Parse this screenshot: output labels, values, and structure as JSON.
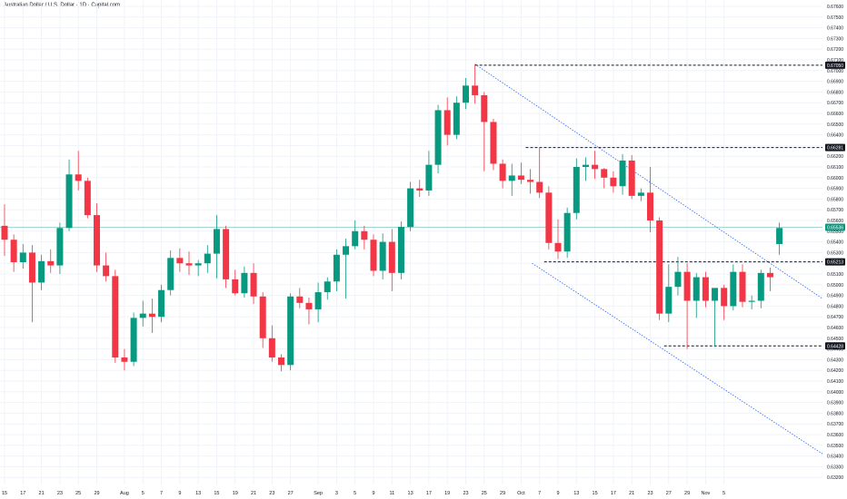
{
  "header": {
    "title": "Australian Dollar / U.S. Dollar · 1D · Capital.com"
  },
  "colors": {
    "up": "#089981",
    "down": "#f23645",
    "grid": "#f0f3fa",
    "axis_text": "#131722",
    "channel": "#2962ff",
    "level_line": "#131722",
    "current_price": "#089981"
  },
  "chart_data": {
    "type": "candlestick",
    "title": "Australian Dollar / U.S. Dollar · 1D · Capital.com",
    "ylim": [
      0.632,
      0.676
    ],
    "grid": true,
    "y_ticks": [
      "0.67600",
      "0.67500",
      "0.67400",
      "0.67300",
      "0.67200",
      "0.67100",
      "0.67000",
      "0.66900",
      "0.66800",
      "0.66700",
      "0.66600",
      "0.66500",
      "0.66400",
      "0.66300",
      "0.66200",
      "0.66100",
      "0.66000",
      "0.65900",
      "0.65800",
      "0.65700",
      "0.65600",
      "0.65500",
      "0.65400",
      "0.65300",
      "0.65200",
      "0.65100",
      "0.65000",
      "0.64900",
      "0.64800",
      "0.64700",
      "0.64600",
      "0.64500",
      "0.64400",
      "0.64300",
      "0.64200",
      "0.64100",
      "0.64000",
      "0.63900",
      "0.63800",
      "0.63700",
      "0.63600",
      "0.63500",
      "0.63400",
      "0.63300",
      "0.63200"
    ],
    "x_ticks": [
      {
        "label": "15",
        "i": 0
      },
      {
        "label": "17",
        "i": 2
      },
      {
        "label": "21",
        "i": 4
      },
      {
        "label": "23",
        "i": 6
      },
      {
        "label": "25",
        "i": 8
      },
      {
        "label": "29",
        "i": 10
      },
      {
        "label": "Aug",
        "i": 13
      },
      {
        "label": "5",
        "i": 15
      },
      {
        "label": "7",
        "i": 17
      },
      {
        "label": "9",
        "i": 19
      },
      {
        "label": "13",
        "i": 21
      },
      {
        "label": "15",
        "i": 23
      },
      {
        "label": "19",
        "i": 25
      },
      {
        "label": "21",
        "i": 27
      },
      {
        "label": "23",
        "i": 29
      },
      {
        "label": "27",
        "i": 31
      },
      {
        "label": "Sep",
        "i": 34
      },
      {
        "label": "3",
        "i": 36
      },
      {
        "label": "5",
        "i": 38
      },
      {
        "label": "9",
        "i": 40
      },
      {
        "label": "11",
        "i": 42
      },
      {
        "label": "13",
        "i": 44
      },
      {
        "label": "17",
        "i": 46
      },
      {
        "label": "19",
        "i": 48
      },
      {
        "label": "23",
        "i": 50
      },
      {
        "label": "25",
        "i": 52
      },
      {
        "label": "29",
        "i": 54
      },
      {
        "label": "Oct",
        "i": 56
      },
      {
        "label": "7",
        "i": 58
      },
      {
        "label": "9",
        "i": 60
      },
      {
        "label": "13",
        "i": 62
      },
      {
        "label": "15",
        "i": 64
      },
      {
        "label": "17",
        "i": 66
      },
      {
        "label": "21",
        "i": 68
      },
      {
        "label": "23",
        "i": 70
      },
      {
        "label": "27",
        "i": 72
      },
      {
        "label": "29",
        "i": 74
      },
      {
        "label": "Nov",
        "i": 76
      },
      {
        "label": "5",
        "i": 78
      }
    ],
    "candles": [
      {
        "o": 0.6555,
        "h": 0.6575,
        "l": 0.6527,
        "c": 0.6542
      },
      {
        "o": 0.6542,
        "h": 0.6547,
        "l": 0.6512,
        "c": 0.6521
      },
      {
        "o": 0.6521,
        "h": 0.6538,
        "l": 0.6515,
        "c": 0.653
      },
      {
        "o": 0.653,
        "h": 0.6537,
        "l": 0.6465,
        "c": 0.6502
      },
      {
        "o": 0.6502,
        "h": 0.6528,
        "l": 0.6495,
        "c": 0.6522
      },
      {
        "o": 0.6522,
        "h": 0.6533,
        "l": 0.6511,
        "c": 0.6518
      },
      {
        "o": 0.6518,
        "h": 0.6558,
        "l": 0.651,
        "c": 0.6553
      },
      {
        "o": 0.6553,
        "h": 0.6617,
        "l": 0.655,
        "c": 0.6603
      },
      {
        "o": 0.6603,
        "h": 0.6625,
        "l": 0.6588,
        "c": 0.6597
      },
      {
        "o": 0.6597,
        "h": 0.66,
        "l": 0.6562,
        "c": 0.6565
      },
      {
        "o": 0.6565,
        "h": 0.6576,
        "l": 0.6512,
        "c": 0.6518
      },
      {
        "o": 0.6518,
        "h": 0.653,
        "l": 0.6503,
        "c": 0.6508
      },
      {
        "o": 0.6508,
        "h": 0.6514,
        "l": 0.6427,
        "c": 0.6432
      },
      {
        "o": 0.6432,
        "h": 0.644,
        "l": 0.642,
        "c": 0.6428
      },
      {
        "o": 0.6428,
        "h": 0.6474,
        "l": 0.6424,
        "c": 0.6469
      },
      {
        "o": 0.6469,
        "h": 0.6485,
        "l": 0.6461,
        "c": 0.6473
      },
      {
        "o": 0.6473,
        "h": 0.6487,
        "l": 0.6455,
        "c": 0.647
      },
      {
        "o": 0.647,
        "h": 0.65,
        "l": 0.6465,
        "c": 0.6495
      },
      {
        "o": 0.6495,
        "h": 0.6532,
        "l": 0.649,
        "c": 0.6525
      },
      {
        "o": 0.6525,
        "h": 0.6534,
        "l": 0.6512,
        "c": 0.652
      },
      {
        "o": 0.652,
        "h": 0.6531,
        "l": 0.6509,
        "c": 0.6518
      },
      {
        "o": 0.6518,
        "h": 0.6523,
        "l": 0.6508,
        "c": 0.652
      },
      {
        "o": 0.652,
        "h": 0.6537,
        "l": 0.6511,
        "c": 0.6529
      },
      {
        "o": 0.6529,
        "h": 0.6565,
        "l": 0.6506,
        "c": 0.6552
      },
      {
        "o": 0.6552,
        "h": 0.6555,
        "l": 0.6497,
        "c": 0.6505
      },
      {
        "o": 0.6505,
        "h": 0.6514,
        "l": 0.649,
        "c": 0.6492
      },
      {
        "o": 0.6492,
        "h": 0.6517,
        "l": 0.6488,
        "c": 0.6511
      },
      {
        "o": 0.6511,
        "h": 0.652,
        "l": 0.6482,
        "c": 0.6489
      },
      {
        "o": 0.6489,
        "h": 0.6493,
        "l": 0.6441,
        "c": 0.645
      },
      {
        "o": 0.645,
        "h": 0.6462,
        "l": 0.6428,
        "c": 0.6432
      },
      {
        "o": 0.6432,
        "h": 0.6435,
        "l": 0.6419,
        "c": 0.6425
      },
      {
        "o": 0.6425,
        "h": 0.6492,
        "l": 0.642,
        "c": 0.6489
      },
      {
        "o": 0.6489,
        "h": 0.6497,
        "l": 0.6478,
        "c": 0.6483
      },
      {
        "o": 0.6483,
        "h": 0.6488,
        "l": 0.6463,
        "c": 0.6477
      },
      {
        "o": 0.6477,
        "h": 0.6502,
        "l": 0.6465,
        "c": 0.6493
      },
      {
        "o": 0.6493,
        "h": 0.6507,
        "l": 0.6486,
        "c": 0.6503
      },
      {
        "o": 0.6503,
        "h": 0.6533,
        "l": 0.6494,
        "c": 0.6528
      },
      {
        "o": 0.6528,
        "h": 0.6543,
        "l": 0.6487,
        "c": 0.6536
      },
      {
        "o": 0.6536,
        "h": 0.656,
        "l": 0.6533,
        "c": 0.655
      },
      {
        "o": 0.655,
        "h": 0.6555,
        "l": 0.6533,
        "c": 0.6542
      },
      {
        "o": 0.6542,
        "h": 0.6547,
        "l": 0.6508,
        "c": 0.6513
      },
      {
        "o": 0.6513,
        "h": 0.6548,
        "l": 0.6505,
        "c": 0.654
      },
      {
        "o": 0.654,
        "h": 0.6552,
        "l": 0.6494,
        "c": 0.6511
      },
      {
        "o": 0.6511,
        "h": 0.6559,
        "l": 0.6505,
        "c": 0.6554
      },
      {
        "o": 0.6554,
        "h": 0.6596,
        "l": 0.655,
        "c": 0.659
      },
      {
        "o": 0.659,
        "h": 0.6598,
        "l": 0.6582,
        "c": 0.6588
      },
      {
        "o": 0.6588,
        "h": 0.6625,
        "l": 0.6583,
        "c": 0.6612
      },
      {
        "o": 0.6612,
        "h": 0.6668,
        "l": 0.6604,
        "c": 0.6663
      },
      {
        "o": 0.6663,
        "h": 0.6675,
        "l": 0.663,
        "c": 0.664
      },
      {
        "o": 0.664,
        "h": 0.6676,
        "l": 0.6636,
        "c": 0.667
      },
      {
        "o": 0.667,
        "h": 0.6693,
        "l": 0.6664,
        "c": 0.6686
      },
      {
        "o": 0.6686,
        "h": 0.6706,
        "l": 0.6669,
        "c": 0.6677
      },
      {
        "o": 0.6677,
        "h": 0.668,
        "l": 0.6606,
        "c": 0.6652
      },
      {
        "o": 0.6652,
        "h": 0.6655,
        "l": 0.6607,
        "c": 0.6613
      },
      {
        "o": 0.6613,
        "h": 0.6617,
        "l": 0.659,
        "c": 0.6597
      },
      {
        "o": 0.6597,
        "h": 0.6613,
        "l": 0.6583,
        "c": 0.6602
      },
      {
        "o": 0.6602,
        "h": 0.6614,
        "l": 0.6594,
        "c": 0.6598
      },
      {
        "o": 0.6598,
        "h": 0.6608,
        "l": 0.6585,
        "c": 0.6596
      },
      {
        "o": 0.6596,
        "h": 0.6628,
        "l": 0.6581,
        "c": 0.6586
      },
      {
        "o": 0.6586,
        "h": 0.6592,
        "l": 0.6533,
        "c": 0.6539
      },
      {
        "o": 0.6539,
        "h": 0.6561,
        "l": 0.6524,
        "c": 0.6531
      },
      {
        "o": 0.6531,
        "h": 0.6572,
        "l": 0.6525,
        "c": 0.6567
      },
      {
        "o": 0.6567,
        "h": 0.6618,
        "l": 0.6561,
        "c": 0.661
      },
      {
        "o": 0.661,
        "h": 0.6619,
        "l": 0.6597,
        "c": 0.6612
      },
      {
        "o": 0.6612,
        "h": 0.6625,
        "l": 0.6599,
        "c": 0.6608
      },
      {
        "o": 0.6608,
        "h": 0.6609,
        "l": 0.659,
        "c": 0.66
      },
      {
        "o": 0.66,
        "h": 0.6606,
        "l": 0.6586,
        "c": 0.6592
      },
      {
        "o": 0.6592,
        "h": 0.6622,
        "l": 0.6584,
        "c": 0.6616
      },
      {
        "o": 0.6616,
        "h": 0.6621,
        "l": 0.658,
        "c": 0.6583
      },
      {
        "o": 0.6583,
        "h": 0.659,
        "l": 0.6578,
        "c": 0.6586
      },
      {
        "o": 0.6586,
        "h": 0.661,
        "l": 0.6549,
        "c": 0.656
      },
      {
        "o": 0.656,
        "h": 0.6563,
        "l": 0.6467,
        "c": 0.6473
      },
      {
        "o": 0.6473,
        "h": 0.6519,
        "l": 0.6465,
        "c": 0.6498
      },
      {
        "o": 0.6498,
        "h": 0.6526,
        "l": 0.649,
        "c": 0.6512
      },
      {
        "o": 0.6512,
        "h": 0.652,
        "l": 0.644,
        "c": 0.6485
      },
      {
        "o": 0.6485,
        "h": 0.6511,
        "l": 0.6469,
        "c": 0.6507
      },
      {
        "o": 0.6507,
        "h": 0.6512,
        "l": 0.6479,
        "c": 0.6485
      },
      {
        "o": 0.6485,
        "h": 0.6496,
        "l": 0.6442,
        "c": 0.6497
      },
      {
        "o": 0.6497,
        "h": 0.65,
        "l": 0.6467,
        "c": 0.648
      },
      {
        "o": 0.648,
        "h": 0.6519,
        "l": 0.6476,
        "c": 0.6512
      },
      {
        "o": 0.6512,
        "h": 0.6519,
        "l": 0.6479,
        "c": 0.6484
      },
      {
        "o": 0.6484,
        "h": 0.649,
        "l": 0.6477,
        "c": 0.6485
      },
      {
        "o": 0.6485,
        "h": 0.6514,
        "l": 0.6478,
        "c": 0.6511
      },
      {
        "o": 0.6511,
        "h": 0.6516,
        "l": 0.6494,
        "c": 0.6507
      },
      {
        "o": 0.6538,
        "h": 0.6558,
        "l": 0.6528,
        "c": 0.6553
      }
    ],
    "levels": [
      {
        "price": 0.6705,
        "label": "0.67050"
      },
      {
        "price": 0.66281,
        "label": "0.66281"
      },
      {
        "price": 0.65213,
        "label": "0.65213"
      },
      {
        "price": 0.64428,
        "label": "0.64428"
      }
    ],
    "current_price": {
      "price": 0.65536,
      "label": "0.65536"
    }
  }
}
